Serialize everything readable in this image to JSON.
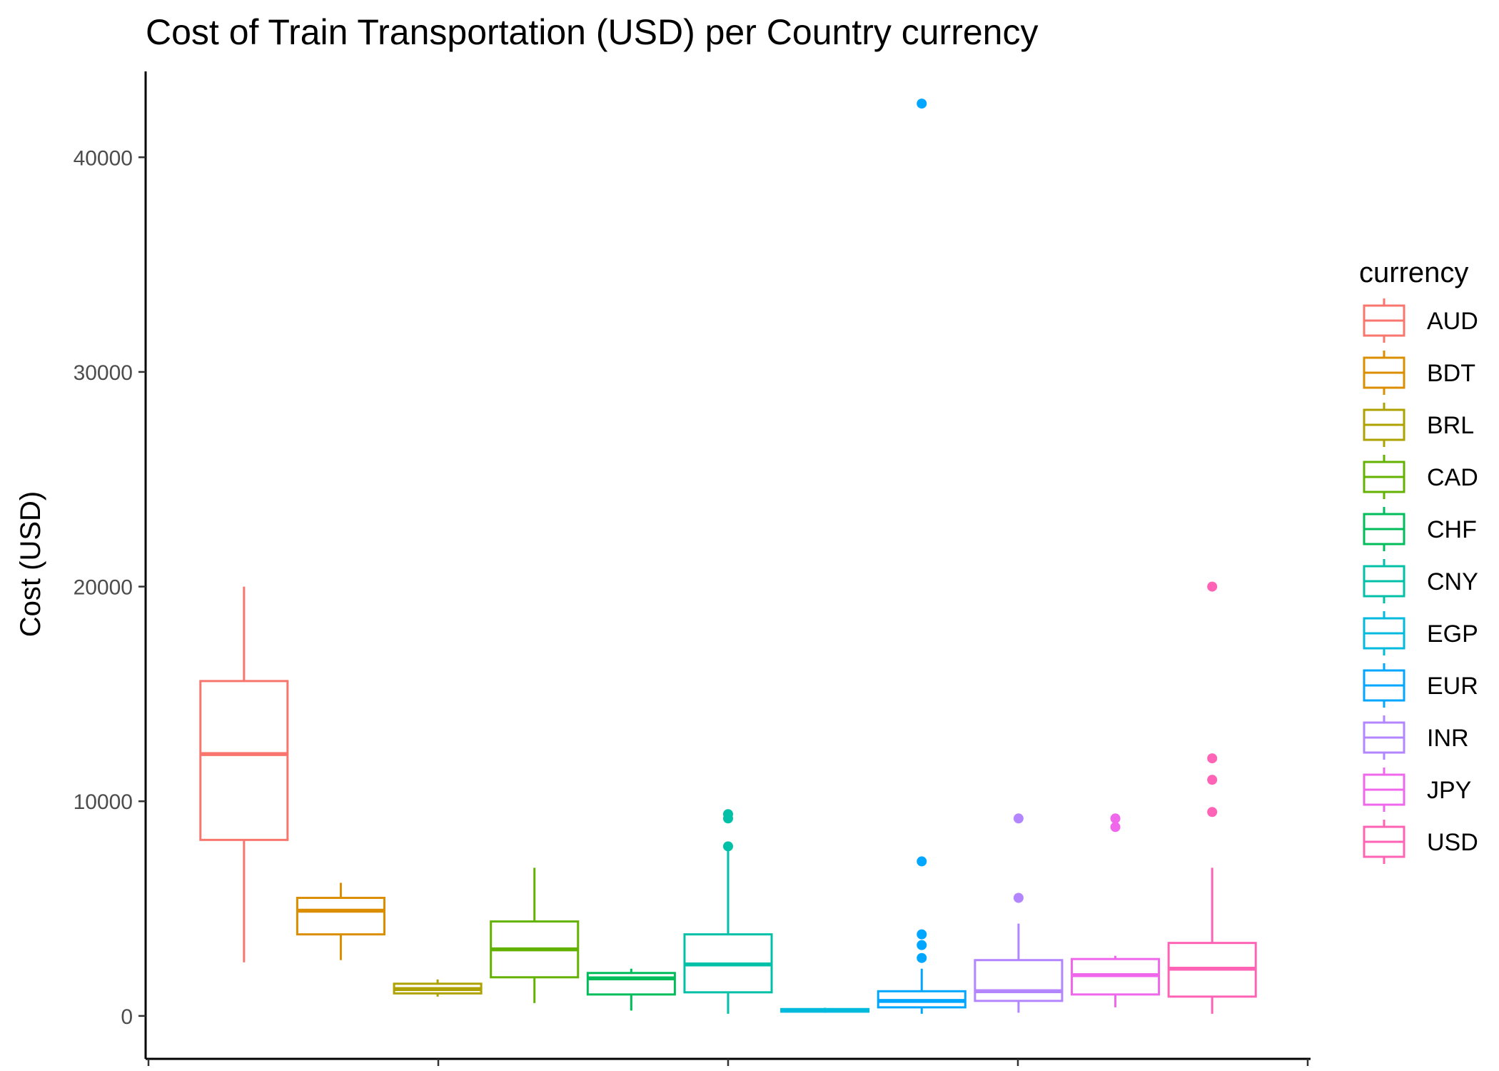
{
  "chart_data": {
    "type": "boxplot",
    "title": "Cost of Train Transportation (USD) per Country currency",
    "xlabel": "",
    "ylabel": "Cost (USD)",
    "ylim": [
      -2000,
      44000
    ],
    "yticks": [
      0,
      10000,
      20000,
      30000,
      40000
    ],
    "xticks_count": 5,
    "grid": false,
    "legend": {
      "title": "currency",
      "position": "right"
    },
    "series": [
      {
        "name": "AUD",
        "color": "#F8766D",
        "q1": 8200,
        "median": 12200,
        "q3": 15600,
        "whisker_low": 2500,
        "whisker_high": 20000,
        "outliers": []
      },
      {
        "name": "BDT",
        "color": "#DB8E00",
        "q1": 3800,
        "median": 4900,
        "q3": 5500,
        "whisker_low": 2600,
        "whisker_high": 6200,
        "outliers": []
      },
      {
        "name": "BRL",
        "color": "#AEA200",
        "q1": 1050,
        "median": 1250,
        "q3": 1500,
        "whisker_low": 900,
        "whisker_high": 1700,
        "outliers": []
      },
      {
        "name": "CAD",
        "color": "#64B200",
        "q1": 1800,
        "median": 3100,
        "q3": 4400,
        "whisker_low": 600,
        "whisker_high": 6900,
        "outliers": []
      },
      {
        "name": "CHF",
        "color": "#00BD5C",
        "q1": 1000,
        "median": 1750,
        "q3": 2000,
        "whisker_low": 250,
        "whisker_high": 2200,
        "outliers": []
      },
      {
        "name": "CNY",
        "color": "#00C1A7",
        "q1": 1100,
        "median": 2400,
        "q3": 3800,
        "whisker_low": 100,
        "whisker_high": 7800,
        "outliers": [
          7900,
          9200,
          9400
        ]
      },
      {
        "name": "EGP",
        "color": "#00BADE",
        "q1": 200,
        "median": 250,
        "q3": 320,
        "whisker_low": 150,
        "whisker_high": 380,
        "outliers": []
      },
      {
        "name": "EUR",
        "color": "#00A6FF",
        "q1": 400,
        "median": 700,
        "q3": 1150,
        "whisker_low": 100,
        "whisker_high": 2200,
        "outliers": [
          2700,
          3300,
          3800,
          7200,
          42500
        ]
      },
      {
        "name": "INR",
        "color": "#B385FF",
        "q1": 700,
        "median": 1150,
        "q3": 2600,
        "whisker_low": 150,
        "whisker_high": 4300,
        "outliers": [
          5500,
          9200
        ]
      },
      {
        "name": "JPY",
        "color": "#EF67EB",
        "q1": 1000,
        "median": 1900,
        "q3": 2650,
        "whisker_low": 400,
        "whisker_high": 2800,
        "outliers": [
          8800,
          9200
        ]
      },
      {
        "name": "USD",
        "color": "#FF63B6",
        "q1": 900,
        "median": 2200,
        "q3": 3400,
        "whisker_low": 100,
        "whisker_high": 6900,
        "outliers": [
          9500,
          11000,
          12000,
          20000
        ]
      }
    ]
  }
}
